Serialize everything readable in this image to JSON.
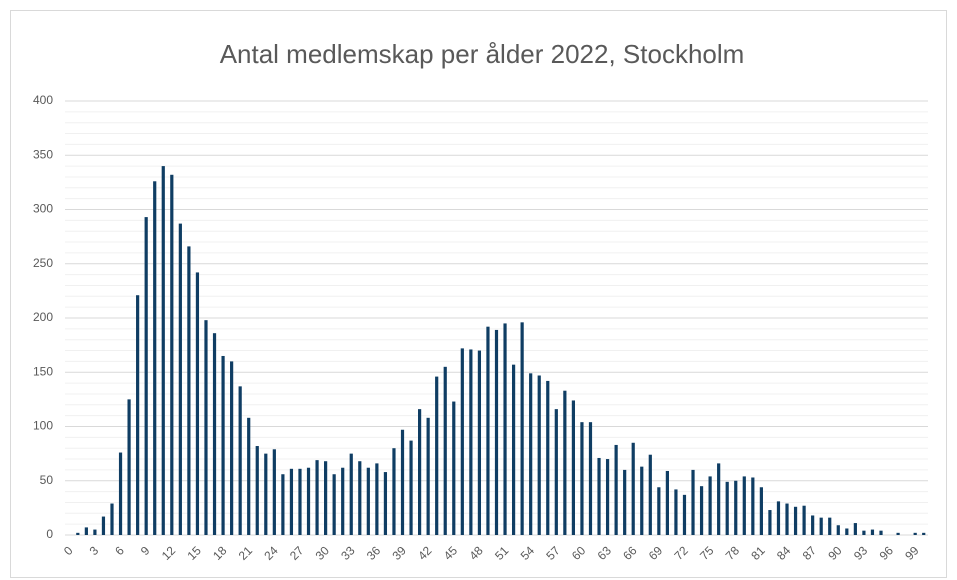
{
  "chart_data": {
    "type": "bar",
    "title": "Antal medlemskap per ålder 2022, Stockholm",
    "categories": [
      0,
      null,
      null,
      3,
      null,
      null,
      6,
      null,
      null,
      9,
      null,
      null,
      12,
      null,
      null,
      15,
      null,
      null,
      18,
      null,
      null,
      21,
      null,
      null,
      24,
      null,
      null,
      27,
      null,
      null,
      30,
      null,
      null,
      33,
      null,
      null,
      36,
      null,
      null,
      39,
      null,
      null,
      42,
      null,
      null,
      45,
      null,
      null,
      48,
      null,
      null,
      51,
      null,
      null,
      54,
      null,
      null,
      57,
      null,
      null,
      60,
      null,
      null,
      63,
      null,
      null,
      66,
      null,
      null,
      69,
      null,
      null,
      72,
      null,
      null,
      75,
      null,
      null,
      78,
      null,
      null,
      81,
      null,
      null,
      84,
      null,
      null,
      87,
      null,
      null,
      90,
      null,
      null,
      93,
      null,
      null,
      96,
      null,
      null,
      99,
      null
    ],
    "values": [
      0,
      2,
      7,
      5,
      17,
      29,
      76,
      125,
      221,
      293,
      326,
      340,
      332,
      287,
      266,
      242,
      198,
      186,
      165,
      160,
      137,
      108,
      82,
      75,
      79,
      56,
      61,
      61,
      62,
      69,
      68,
      56,
      62,
      75,
      68,
      62,
      66,
      58,
      80,
      97,
      87,
      116,
      108,
      146,
      155,
      123,
      172,
      171,
      170,
      192,
      189,
      195,
      157,
      196,
      149,
      147,
      142,
      116,
      133,
      124,
      104,
      104,
      71,
      70,
      83,
      60,
      85,
      63,
      74,
      44,
      59,
      42,
      37,
      60,
      45,
      54,
      66,
      49,
      50,
      54,
      53,
      44,
      23,
      31,
      29,
      26,
      27,
      18,
      16,
      16,
      9,
      6,
      11,
      4,
      5,
      4,
      0,
      2,
      0,
      2,
      2
    ],
    "color": "#0f3d63",
    "ylim": [
      0,
      400
    ],
    "yticks": [
      0,
      50,
      100,
      150,
      200,
      250,
      300,
      350,
      400
    ],
    "minor_yticks": [
      10,
      20,
      30,
      40,
      60,
      70,
      80,
      90,
      110,
      120,
      130,
      140,
      160,
      170,
      180,
      190,
      210,
      220,
      230,
      240,
      260,
      270,
      280,
      290,
      310,
      320,
      330,
      340,
      360,
      370,
      380,
      390
    ],
    "grid": true
  }
}
